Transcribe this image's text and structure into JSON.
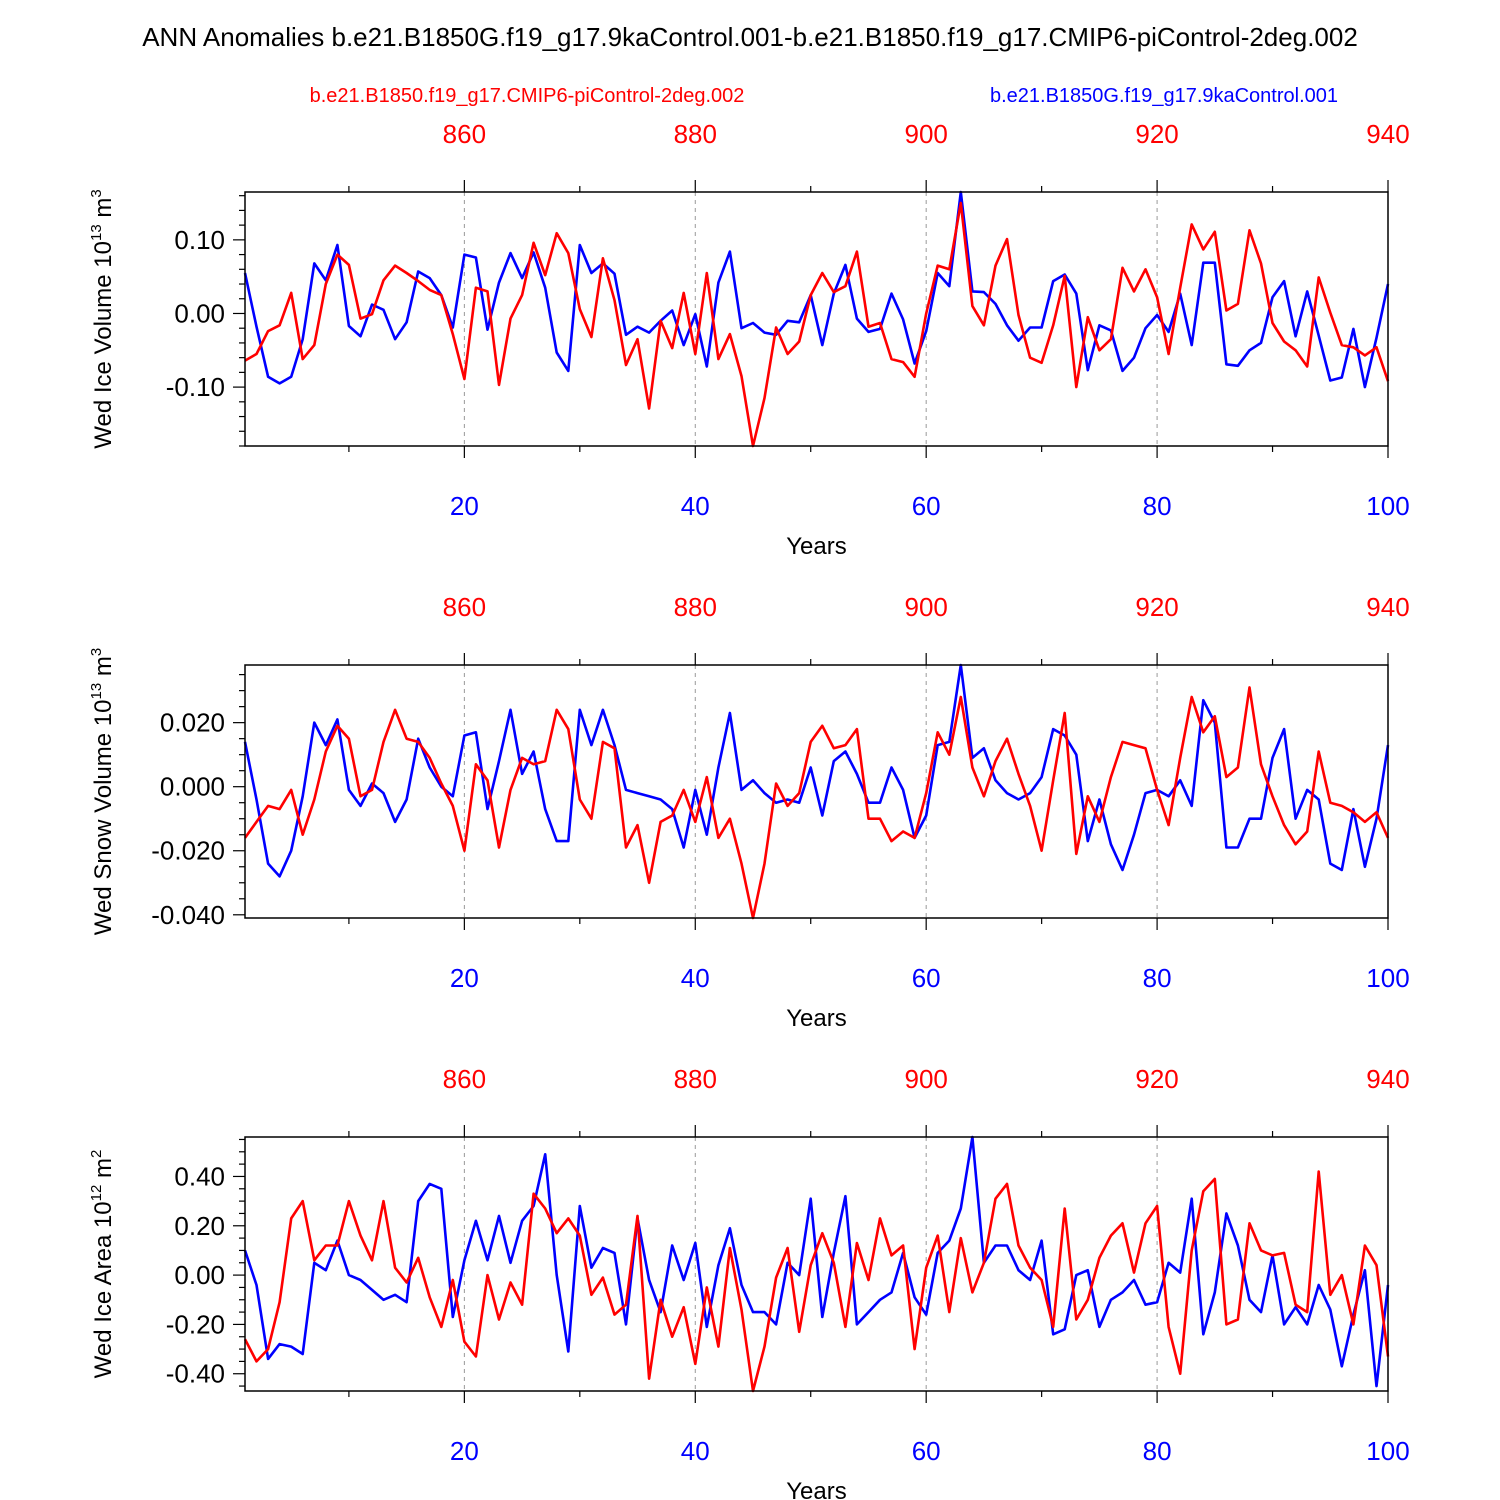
{
  "figure": {
    "title": "ANN Anomalies b.e21.B1850G.f19_g17.9kaControl.001-b.e21.B1850.f19_g17.CMIP6-piControl-2deg.002",
    "legend": [
      {
        "label": "b.e21.B1850.f19_g17.CMIP6-piControl-2deg.002",
        "color": "#ff0000"
      },
      {
        "label": "b.e21.B1850G.f19_g17.9kaControl.001",
        "color": "#0000ff"
      }
    ],
    "colors": {
      "series_a": "#0000ff",
      "series_b": "#ff0000",
      "frame": "#000000",
      "grid": "#999999"
    }
  },
  "chart_data": [
    {
      "type": "line",
      "ylabel": "Wed Ice Volume 10",
      "ylabel_sup": "13",
      "ylabel_unit": " m",
      "ylabel_unit_sup": "3",
      "xlabel": "Years",
      "xlim": [
        1,
        100
      ],
      "ylim": [
        -0.18,
        0.165
      ],
      "yticks": [
        {
          "v": 0.1,
          "label": "0.10"
        },
        {
          "v": 0.0,
          "label": "0.00"
        },
        {
          "v": -0.1,
          "label": "-0.10"
        }
      ],
      "yminor_step": 0.02,
      "xticks": [
        {
          "v": 20,
          "label": "20"
        },
        {
          "v": 40,
          "label": "40"
        },
        {
          "v": 60,
          "label": "60"
        },
        {
          "v": 80,
          "label": "80"
        },
        {
          "v": 100,
          "label": "100"
        }
      ],
      "xminor_step": 10,
      "top_xlim": [
        841,
        940
      ],
      "top_ticks": [
        {
          "v": 860,
          "label": "860"
        },
        {
          "v": 880,
          "label": "880"
        },
        {
          "v": 900,
          "label": "900"
        },
        {
          "v": 920,
          "label": "920"
        },
        {
          "v": 940,
          "label": "940"
        }
      ],
      "top_minor_step": 10,
      "grid_x": [
        20,
        40,
        60,
        80
      ],
      "series": [
        {
          "name": "b.e21.B1850G.f19_g17.9kaControl.001",
          "color": "#0000ff",
          "values": [
            0.055,
            -0.018,
            -0.086,
            -0.095,
            -0.086,
            -0.035,
            0.068,
            0.045,
            0.093,
            -0.017,
            -0.031,
            0.012,
            0.005,
            -0.035,
            -0.012,
            0.057,
            0.048,
            0.025,
            -0.019,
            0.08,
            0.076,
            -0.022,
            0.042,
            0.082,
            0.048,
            0.083,
            0.035,
            -0.053,
            -0.078,
            0.093,
            0.055,
            0.068,
            0.054,
            -0.029,
            -0.018,
            -0.026,
            -0.01,
            0.004,
            -0.043,
            -0.001,
            -0.072,
            0.042,
            0.084,
            -0.02,
            -0.013,
            -0.026,
            -0.029,
            -0.01,
            -0.012,
            0.025,
            -0.043,
            0.027,
            0.066,
            -0.007,
            -0.025,
            -0.021,
            0.027,
            -0.008,
            -0.068,
            -0.024,
            0.055,
            0.037,
            0.165,
            0.03,
            0.029,
            0.013,
            -0.016,
            -0.037,
            -0.019,
            -0.019,
            0.044,
            0.053,
            0.027,
            -0.077,
            -0.016,
            -0.023,
            -0.078,
            -0.06,
            -0.02,
            -0.002,
            -0.025,
            0.027,
            -0.043,
            0.069,
            0.069,
            -0.069,
            -0.071,
            -0.05,
            -0.04,
            0.022,
            0.044,
            -0.031,
            0.03,
            -0.03,
            -0.091,
            -0.087,
            -0.021,
            -0.1,
            -0.033,
            0.04
          ]
        },
        {
          "name": "b.e21.B1850.f19_g17.CMIP6-piControl-2deg.002",
          "color": "#ff0000",
          "values": [
            -0.064,
            -0.055,
            -0.024,
            -0.016,
            0.028,
            -0.062,
            -0.043,
            0.04,
            0.08,
            0.066,
            -0.007,
            -0.001,
            0.045,
            0.065,
            0.055,
            0.044,
            0.032,
            0.025,
            -0.028,
            -0.089,
            0.035,
            0.03,
            -0.097,
            -0.007,
            0.025,
            0.096,
            0.052,
            0.109,
            0.082,
            0.006,
            -0.032,
            0.075,
            0.018,
            -0.07,
            -0.035,
            -0.129,
            -0.01,
            -0.047,
            0.028,
            -0.055,
            0.055,
            -0.062,
            -0.028,
            -0.085,
            -0.18,
            -0.115,
            -0.019,
            -0.055,
            -0.038,
            0.025,
            0.055,
            0.029,
            0.037,
            0.084,
            -0.018,
            -0.013,
            -0.062,
            -0.066,
            -0.086,
            0.0,
            0.065,
            0.06,
            0.15,
            0.01,
            -0.016,
            0.065,
            0.101,
            -0.002,
            -0.06,
            -0.067,
            -0.016,
            0.051,
            -0.1,
            -0.005,
            -0.05,
            -0.035,
            0.062,
            0.03,
            0.06,
            0.022,
            -0.055,
            0.035,
            0.121,
            0.087,
            0.111,
            0.004,
            0.013,
            0.113,
            0.068,
            -0.013,
            -0.038,
            -0.05,
            -0.072,
            0.049,
            0.001,
            -0.043,
            -0.046,
            -0.057,
            -0.046,
            -0.092
          ]
        }
      ]
    },
    {
      "type": "line",
      "ylabel": "Wed Snow Volume 10",
      "ylabel_sup": "13",
      "ylabel_unit": " m",
      "ylabel_unit_sup": "3",
      "xlabel": "Years",
      "xlim": [
        1,
        100
      ],
      "ylim": [
        -0.041,
        0.038
      ],
      "yticks": [
        {
          "v": 0.02,
          "label": "0.020"
        },
        {
          "v": 0.0,
          "label": "0.000"
        },
        {
          "v": -0.02,
          "label": "-0.020"
        },
        {
          "v": -0.04,
          "label": "-0.040"
        }
      ],
      "yminor_step": 0.005,
      "xticks": [
        {
          "v": 20,
          "label": "20"
        },
        {
          "v": 40,
          "label": "40"
        },
        {
          "v": 60,
          "label": "60"
        },
        {
          "v": 80,
          "label": "80"
        },
        {
          "v": 100,
          "label": "100"
        }
      ],
      "xminor_step": 10,
      "top_xlim": [
        841,
        940
      ],
      "top_ticks": [
        {
          "v": 860,
          "label": "860"
        },
        {
          "v": 880,
          "label": "880"
        },
        {
          "v": 900,
          "label": "900"
        },
        {
          "v": 920,
          "label": "920"
        },
        {
          "v": 940,
          "label": "940"
        }
      ],
      "top_minor_step": 10,
      "grid_x": [
        20,
        40,
        60,
        80
      ],
      "series": [
        {
          "name": "b.e21.B1850G.f19_g17.9kaControl.001",
          "color": "#0000ff",
          "values": [
            0.014,
            -0.004,
            -0.024,
            -0.028,
            -0.02,
            -0.003,
            0.02,
            0.013,
            0.021,
            -0.001,
            -0.006,
            0.001,
            -0.002,
            -0.011,
            -0.004,
            0.015,
            0.006,
            0.0,
            -0.003,
            0.016,
            0.017,
            -0.007,
            0.008,
            0.024,
            0.004,
            0.011,
            -0.007,
            -0.017,
            -0.017,
            0.024,
            0.013,
            0.024,
            0.013,
            -0.001,
            -0.002,
            -0.003,
            -0.004,
            -0.007,
            -0.019,
            -0.001,
            -0.015,
            0.006,
            0.023,
            -0.001,
            0.002,
            -0.002,
            -0.005,
            -0.004,
            -0.005,
            0.006,
            -0.009,
            0.008,
            0.011,
            0.004,
            -0.005,
            -0.005,
            0.006,
            -0.001,
            -0.016,
            -0.009,
            0.013,
            0.014,
            0.038,
            0.009,
            0.012,
            0.002,
            -0.002,
            -0.004,
            -0.002,
            0.003,
            0.018,
            0.016,
            0.01,
            -0.017,
            -0.004,
            -0.018,
            -0.026,
            -0.015,
            -0.002,
            -0.001,
            -0.003,
            0.002,
            -0.006,
            0.027,
            0.02,
            -0.019,
            -0.019,
            -0.01,
            -0.01,
            0.009,
            0.018,
            -0.01,
            -0.001,
            -0.004,
            -0.024,
            -0.026,
            -0.007,
            -0.025,
            -0.01,
            0.013
          ]
        },
        {
          "name": "b.e21.B1850.f19_g17.CMIP6-piControl-2deg.002",
          "color": "#ff0000",
          "values": [
            -0.016,
            -0.011,
            -0.006,
            -0.007,
            -0.001,
            -0.015,
            -0.004,
            0.011,
            0.019,
            0.015,
            -0.003,
            -0.001,
            0.014,
            0.024,
            0.015,
            0.014,
            0.009,
            0.001,
            -0.006,
            -0.02,
            0.007,
            0.002,
            -0.019,
            -0.001,
            0.009,
            0.007,
            0.008,
            0.024,
            0.018,
            -0.004,
            -0.01,
            0.014,
            0.012,
            -0.019,
            -0.012,
            -0.03,
            -0.011,
            -0.009,
            -0.001,
            -0.011,
            0.003,
            -0.016,
            -0.01,
            -0.024,
            -0.041,
            -0.024,
            0.001,
            -0.006,
            -0.002,
            0.014,
            0.019,
            0.012,
            0.013,
            0.018,
            -0.01,
            -0.01,
            -0.017,
            -0.014,
            -0.016,
            -0.002,
            0.017,
            0.01,
            0.028,
            0.006,
            -0.003,
            0.008,
            0.015,
            0.004,
            -0.006,
            -0.02,
            0.002,
            0.023,
            -0.021,
            -0.003,
            -0.011,
            0.003,
            0.014,
            0.013,
            0.012,
            -0.001,
            -0.012,
            0.009,
            0.028,
            0.017,
            0.022,
            0.003,
            0.006,
            0.031,
            0.007,
            -0.003,
            -0.012,
            -0.018,
            -0.014,
            0.011,
            -0.005,
            -0.006,
            -0.008,
            -0.011,
            -0.008,
            -0.016
          ]
        }
      ]
    },
    {
      "type": "line",
      "ylabel": "Wed Ice Area 10",
      "ylabel_sup": "12",
      "ylabel_unit": " m",
      "ylabel_unit_sup": "2",
      "xlabel": "Years",
      "xlim": [
        1,
        100
      ],
      "ylim": [
        -0.47,
        0.56
      ],
      "yticks": [
        {
          "v": 0.4,
          "label": "0.40"
        },
        {
          "v": 0.2,
          "label": "0.20"
        },
        {
          "v": 0.0,
          "label": "0.00"
        },
        {
          "v": -0.2,
          "label": "-0.20"
        },
        {
          "v": -0.4,
          "label": "-0.40"
        }
      ],
      "yminor_step": 0.05,
      "xticks": [
        {
          "v": 20,
          "label": "20"
        },
        {
          "v": 40,
          "label": "40"
        },
        {
          "v": 60,
          "label": "60"
        },
        {
          "v": 80,
          "label": "80"
        },
        {
          "v": 100,
          "label": "100"
        }
      ],
      "xminor_step": 10,
      "top_xlim": [
        841,
        940
      ],
      "top_ticks": [
        {
          "v": 860,
          "label": "860"
        },
        {
          "v": 880,
          "label": "880"
        },
        {
          "v": 900,
          "label": "900"
        },
        {
          "v": 920,
          "label": "920"
        },
        {
          "v": 940,
          "label": "940"
        }
      ],
      "top_minor_step": 10,
      "grid_x": [
        20,
        40,
        60,
        80
      ],
      "series": [
        {
          "name": "b.e21.B1850G.f19_g17.9kaControl.001",
          "color": "#0000ff",
          "values": [
            0.1,
            -0.04,
            -0.34,
            -0.28,
            -0.29,
            -0.32,
            0.05,
            0.02,
            0.14,
            0.0,
            -0.02,
            -0.06,
            -0.1,
            -0.08,
            -0.11,
            0.3,
            0.37,
            0.35,
            -0.17,
            0.06,
            0.22,
            0.06,
            0.24,
            0.05,
            0.22,
            0.28,
            0.49,
            0.0,
            -0.31,
            0.28,
            0.03,
            0.11,
            0.09,
            -0.2,
            0.23,
            -0.02,
            -0.15,
            0.12,
            -0.02,
            0.13,
            -0.21,
            0.04,
            0.19,
            -0.04,
            -0.15,
            -0.15,
            -0.2,
            0.05,
            0.0,
            0.31,
            -0.17,
            0.09,
            0.32,
            -0.2,
            -0.15,
            -0.1,
            -0.07,
            0.09,
            -0.09,
            -0.16,
            0.09,
            0.14,
            0.27,
            0.56,
            0.05,
            0.12,
            0.12,
            0.02,
            -0.02,
            0.14,
            -0.24,
            -0.22,
            0.0,
            0.02,
            -0.21,
            -0.1,
            -0.07,
            -0.02,
            -0.12,
            -0.11,
            0.05,
            0.01,
            0.31,
            -0.24,
            -0.07,
            0.25,
            0.12,
            -0.1,
            -0.15,
            0.08,
            -0.2,
            -0.13,
            -0.2,
            -0.04,
            -0.14,
            -0.37,
            -0.16,
            0.02,
            -0.45,
            -0.04
          ]
        },
        {
          "name": "b.e21.B1850.f19_g17.CMIP6-piControl-2deg.002",
          "color": "#ff0000",
          "values": [
            -0.26,
            -0.35,
            -0.3,
            -0.11,
            0.23,
            0.3,
            0.06,
            0.12,
            0.12,
            0.3,
            0.16,
            0.06,
            0.3,
            0.03,
            -0.03,
            0.07,
            -0.09,
            -0.21,
            -0.02,
            -0.27,
            -0.33,
            0.0,
            -0.18,
            -0.03,
            -0.12,
            0.33,
            0.27,
            0.17,
            0.23,
            0.16,
            -0.08,
            -0.01,
            -0.16,
            -0.12,
            0.24,
            -0.42,
            -0.1,
            -0.25,
            -0.13,
            -0.36,
            -0.05,
            -0.29,
            0.11,
            -0.14,
            -0.47,
            -0.29,
            -0.01,
            0.11,
            -0.23,
            0.04,
            0.17,
            0.05,
            -0.21,
            0.13,
            -0.02,
            0.23,
            0.08,
            0.12,
            -0.3,
            0.03,
            0.16,
            -0.15,
            0.15,
            -0.07,
            0.05,
            0.31,
            0.37,
            0.12,
            0.03,
            -0.02,
            -0.21,
            0.27,
            -0.18,
            -0.1,
            0.07,
            0.16,
            0.21,
            0.01,
            0.21,
            0.28,
            -0.21,
            -0.4,
            0.1,
            0.34,
            0.39,
            -0.2,
            -0.18,
            0.21,
            0.1,
            0.08,
            0.09,
            -0.12,
            -0.15,
            0.42,
            -0.08,
            0.0,
            -0.2,
            0.12,
            0.04,
            -0.33
          ]
        }
      ]
    }
  ]
}
